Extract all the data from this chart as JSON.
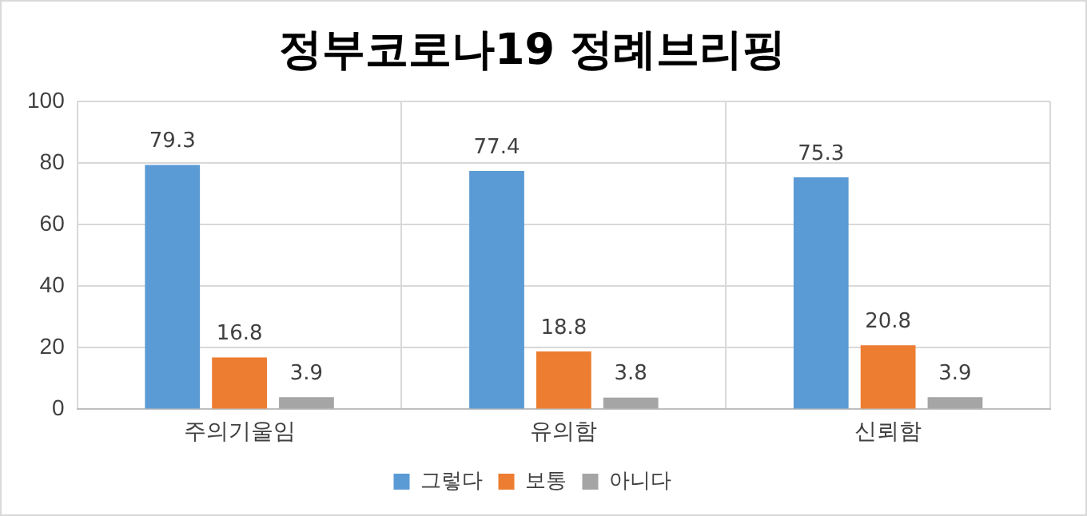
{
  "chart_data": {
    "type": "bar",
    "title": "정부코로나19 정례브리핑",
    "categories": [
      "주의기울임",
      "유의함",
      "신뢰함"
    ],
    "series": [
      {
        "name": "그렇다",
        "color": "#5b9bd5",
        "values": [
          79.3,
          77.4,
          75.3
        ]
      },
      {
        "name": "보통",
        "color": "#ed7d31",
        "values": [
          16.8,
          18.8,
          20.8
        ]
      },
      {
        "name": "아니다",
        "color": "#a5a5a5",
        "values": [
          3.9,
          3.8,
          3.9
        ]
      }
    ],
    "ylim": [
      0,
      100
    ],
    "yticks": [
      0,
      20,
      40,
      60,
      80,
      100
    ],
    "grid": true,
    "legend": "bottom",
    "data_labels": true
  }
}
